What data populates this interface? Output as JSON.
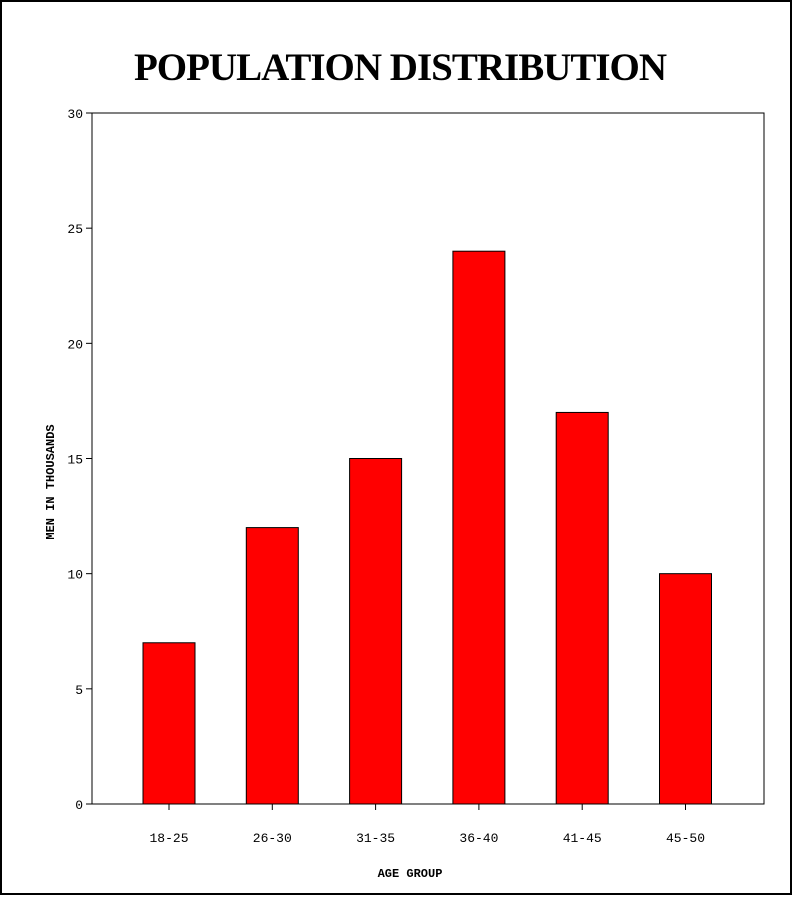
{
  "chart_data": {
    "type": "bar",
    "title": "POPULATION DISTRIBUTION",
    "xlabel": "AGE GROUP",
    "ylabel": "MEN IN THOUSANDS",
    "categories": [
      "18-25",
      "26-30",
      "31-35",
      "36-40",
      "41-45",
      "45-50"
    ],
    "values": [
      7,
      12,
      15,
      24,
      17,
      10
    ],
    "ylim": [
      0,
      30
    ],
    "yticks": [
      "0",
      "5",
      "10",
      "15",
      "20",
      "25",
      "30"
    ],
    "grid": false,
    "legend": "none",
    "colors": {
      "bar_fill": "#ff0000",
      "bar_stroke": "#000000",
      "axis": "#000000",
      "background": "#ffffff"
    }
  }
}
